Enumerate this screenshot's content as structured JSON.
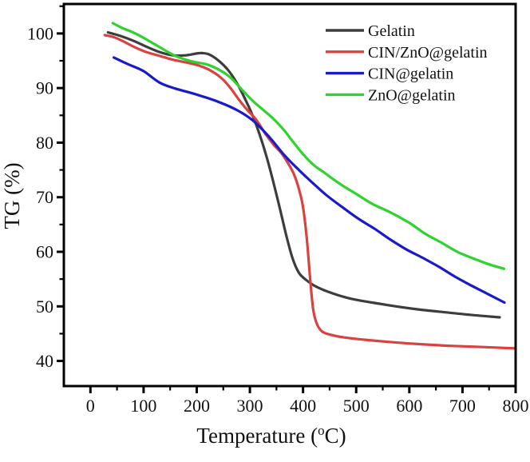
{
  "figure": {
    "background": "#ffffff",
    "axis_color": "#000000",
    "text_color": "#111111"
  },
  "chart_data": {
    "type": "line",
    "title": "",
    "xlabel": "Temperature (°C)",
    "xlabel_parts": {
      "prefix": "Temperature (",
      "sup": "o",
      "suffix": "C)"
    },
    "ylabel": "TG (%)",
    "xlim": [
      -50,
      800
    ],
    "ylim": [
      35.4,
      105.4
    ],
    "grid": false,
    "legend_position": "top-right",
    "x_major_ticks": [
      0,
      100,
      200,
      300,
      400,
      500,
      600,
      700,
      800
    ],
    "x_minor_ticks": [
      50,
      150,
      250,
      350,
      450,
      550,
      650,
      750
    ],
    "y_major_ticks": [
      40,
      50,
      60,
      70,
      80,
      90,
      100
    ],
    "y_minor_ticks": [
      45,
      55,
      65,
      75,
      85,
      95,
      105
    ],
    "series": [
      {
        "name": "Gelatin",
        "color": "#3d3d3d",
        "points": [
          [
            33,
            100.2
          ],
          [
            55,
            99.6
          ],
          [
            80,
            98.7
          ],
          [
            105,
            97.6
          ],
          [
            130,
            96.6
          ],
          [
            155,
            96.0
          ],
          [
            180,
            96.0
          ],
          [
            205,
            96.4
          ],
          [
            222,
            96.2
          ],
          [
            240,
            95.1
          ],
          [
            258,
            93.4
          ],
          [
            275,
            91.0
          ],
          [
            290,
            88.2
          ],
          [
            305,
            85.0
          ],
          [
            318,
            81.6
          ],
          [
            330,
            77.9
          ],
          [
            342,
            73.6
          ],
          [
            355,
            68.5
          ],
          [
            368,
            63.2
          ],
          [
            380,
            58.9
          ],
          [
            392,
            56.2
          ],
          [
            405,
            54.9
          ],
          [
            425,
            53.6
          ],
          [
            455,
            52.4
          ],
          [
            490,
            51.4
          ],
          [
            530,
            50.7
          ],
          [
            575,
            50.0
          ],
          [
            620,
            49.4
          ],
          [
            670,
            48.9
          ],
          [
            720,
            48.4
          ],
          [
            770,
            48.0
          ]
        ]
      },
      {
        "name": "CIN/ZnO@gelatin",
        "color": "#d9423f",
        "points": [
          [
            27,
            99.7
          ],
          [
            45,
            99.3
          ],
          [
            65,
            98.4
          ],
          [
            85,
            97.4
          ],
          [
            105,
            96.6
          ],
          [
            130,
            95.9
          ],
          [
            155,
            95.2
          ],
          [
            180,
            94.7
          ],
          [
            205,
            94.1
          ],
          [
            230,
            93.0
          ],
          [
            250,
            91.5
          ],
          [
            265,
            89.8
          ],
          [
            280,
            87.8
          ],
          [
            295,
            86.0
          ],
          [
            312,
            84.2
          ],
          [
            330,
            81.5
          ],
          [
            345,
            79.6
          ],
          [
            360,
            78.0
          ],
          [
            372,
            76.2
          ],
          [
            383,
            74.2
          ],
          [
            392,
            71.6
          ],
          [
            400,
            68.2
          ],
          [
            407,
            62.5
          ],
          [
            413,
            55.5
          ],
          [
            419,
            49.5
          ],
          [
            426,
            46.8
          ],
          [
            436,
            45.4
          ],
          [
            452,
            44.8
          ],
          [
            478,
            44.3
          ],
          [
            515,
            43.9
          ],
          [
            560,
            43.5
          ],
          [
            615,
            43.1
          ],
          [
            670,
            42.8
          ],
          [
            725,
            42.6
          ],
          [
            800,
            42.3
          ]
        ]
      },
      {
        "name": "CIN@gelatin",
        "color": "#1a1acd",
        "points": [
          [
            44,
            95.6
          ],
          [
            70,
            94.4
          ],
          [
            100,
            93.1
          ],
          [
            130,
            91.0
          ],
          [
            160,
            89.9
          ],
          [
            200,
            88.8
          ],
          [
            240,
            87.5
          ],
          [
            275,
            86.0
          ],
          [
            305,
            84.1
          ],
          [
            335,
            81.2
          ],
          [
            365,
            77.7
          ],
          [
            390,
            75.2
          ],
          [
            415,
            72.9
          ],
          [
            445,
            70.3
          ],
          [
            475,
            68.1
          ],
          [
            505,
            66.0
          ],
          [
            535,
            64.2
          ],
          [
            565,
            62.2
          ],
          [
            595,
            60.4
          ],
          [
            625,
            58.9
          ],
          [
            655,
            57.3
          ],
          [
            685,
            55.5
          ],
          [
            715,
            53.9
          ],
          [
            745,
            52.4
          ],
          [
            779,
            50.7
          ]
        ]
      },
      {
        "name": "ZnO@gelatin",
        "color": "#2ed32e",
        "points": [
          [
            42,
            101.9
          ],
          [
            60,
            101.0
          ],
          [
            80,
            100.2
          ],
          [
            100,
            99.2
          ],
          [
            130,
            97.5
          ],
          [
            160,
            95.9
          ],
          [
            190,
            94.9
          ],
          [
            220,
            94.3
          ],
          [
            245,
            93.2
          ],
          [
            265,
            91.8
          ],
          [
            285,
            89.7
          ],
          [
            305,
            87.7
          ],
          [
            325,
            86.0
          ],
          [
            345,
            84.3
          ],
          [
            365,
            82.2
          ],
          [
            380,
            80.3
          ],
          [
            400,
            77.9
          ],
          [
            420,
            75.9
          ],
          [
            440,
            74.5
          ],
          [
            470,
            72.4
          ],
          [
            500,
            70.6
          ],
          [
            530,
            68.8
          ],
          [
            565,
            67.2
          ],
          [
            600,
            65.3
          ],
          [
            630,
            63.3
          ],
          [
            660,
            61.7
          ],
          [
            690,
            60.0
          ],
          [
            720,
            58.8
          ],
          [
            750,
            57.7
          ],
          [
            778,
            56.9
          ]
        ]
      }
    ]
  }
}
